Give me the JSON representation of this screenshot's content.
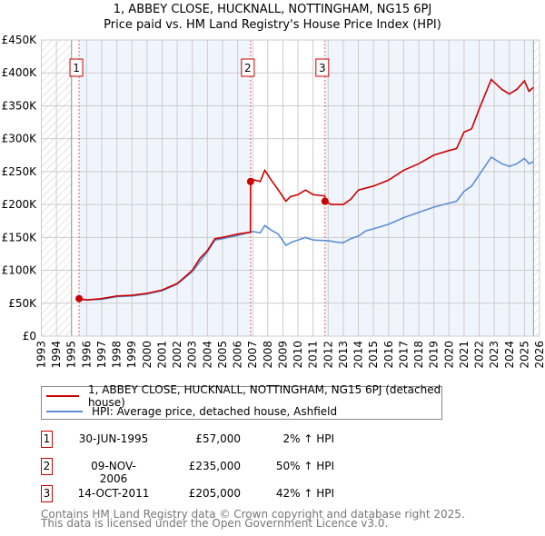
{
  "title_line1": "1, ABBEY CLOSE, HUCKNALL, NOTTINGHAM, NG15 6PJ",
  "title_line2": "Price paid vs. HM Land Registry's House Price Index (HPI)",
  "colors": {
    "property": "#cc0000",
    "hpi": "#5b8fd4",
    "shade": "#f0f4fc",
    "grid": "#cccccc"
  },
  "chart_data": {
    "type": "line",
    "title": "1, ABBEY CLOSE, HUCKNALL, NOTTINGHAM, NG15 6PJ - Price paid vs. HM Land Registry's House Price Index (HPI)",
    "xlim": [
      1993,
      2026
    ],
    "ylim": [
      0,
      450000
    ],
    "grid": true,
    "x_ticks": [
      "1993",
      "1994",
      "1995",
      "1996",
      "1997",
      "1998",
      "1999",
      "2000",
      "2001",
      "2002",
      "2003",
      "2004",
      "2005",
      "2006",
      "2007",
      "2008",
      "2009",
      "2010",
      "2011",
      "2012",
      "2013",
      "2014",
      "2015",
      "2016",
      "2017",
      "2018",
      "2019",
      "2020",
      "2021",
      "2022",
      "2023",
      "2024",
      "2025",
      "2026"
    ],
    "y_ticks": [
      {
        "v": 0,
        "label": "£0"
      },
      {
        "v": 50000,
        "label": "£50K"
      },
      {
        "v": 100000,
        "label": "£100K"
      },
      {
        "v": 150000,
        "label": "£150K"
      },
      {
        "v": 200000,
        "label": "£200K"
      },
      {
        "v": 250000,
        "label": "£250K"
      },
      {
        "v": 300000,
        "label": "£300K"
      },
      {
        "v": 350000,
        "label": "£350K"
      },
      {
        "v": 400000,
        "label": "£400K"
      },
      {
        "v": 450000,
        "label": "£450K"
      }
    ],
    "hatched_before": 1995,
    "hatched_after": 2025.6,
    "series": [
      {
        "name": "1, ABBEY CLOSE, HUCKNALL, NOTTINGHAM, NG15 6PJ (detached house)",
        "color": "#cc0000",
        "x": [
          1995.5,
          1996,
          1997,
          1998,
          1999,
          2000,
          2001,
          2002,
          2003,
          2003.5,
          2004,
          2004.5,
          2005,
          2006,
          2006.85,
          2006.86,
          2007,
          2007.5,
          2007.8,
          2008.2,
          2008.7,
          2009.2,
          2009.5,
          2010,
          2010.5,
          2011,
          2011.78,
          2011.79,
          2012.2,
          2013,
          2013.5,
          2014,
          2015,
          2016,
          2017,
          2018,
          2019,
          2020,
          2020.5,
          2021,
          2021.5,
          2022,
          2022.8,
          2023.5,
          2024,
          2024.5,
          2025,
          2025.3,
          2025.6
        ],
        "y": [
          57000,
          55000,
          57000,
          61000,
          62000,
          65000,
          70000,
          80000,
          100000,
          118000,
          130000,
          148000,
          150000,
          155000,
          158000,
          235000,
          238000,
          235000,
          252000,
          238000,
          222000,
          205000,
          212000,
          215000,
          222000,
          215000,
          213000,
          205000,
          200000,
          200000,
          208000,
          222000,
          228000,
          237000,
          252000,
          262000,
          275000,
          282000,
          285000,
          310000,
          315000,
          345000,
          390000,
          375000,
          368000,
          375000,
          388000,
          372000,
          378000
        ]
      },
      {
        "name": "HPI: Average price, detached house, Ashfield",
        "color": "#5b8fd4",
        "x": [
          1995.5,
          1996,
          1997,
          1998,
          1999,
          2000,
          2001,
          2002,
          2003,
          2004,
          2004.5,
          2005,
          2006,
          2007,
          2007.5,
          2007.8,
          2008.3,
          2008.7,
          2009.2,
          2009.6,
          2010,
          2010.5,
          2011,
          2012,
          2012.5,
          2013,
          2013.5,
          2014,
          2014.5,
          2015,
          2016,
          2017,
          2018,
          2019,
          2020,
          2020.5,
          2021,
          2021.5,
          2022,
          2022.8,
          2023.5,
          2024,
          2024.5,
          2025,
          2025.3,
          2025.6
        ],
        "y": [
          56000,
          55000,
          56000,
          60000,
          61000,
          64000,
          69000,
          79000,
          98000,
          128000,
          146000,
          148000,
          153000,
          159000,
          157000,
          168000,
          160000,
          155000,
          138000,
          143000,
          146000,
          150000,
          146000,
          145000,
          143000,
          142000,
          148000,
          152000,
          160000,
          163000,
          170000,
          180000,
          188000,
          196000,
          202000,
          205000,
          220000,
          228000,
          245000,
          272000,
          262000,
          258000,
          262000,
          270000,
          262000,
          265000
        ]
      }
    ],
    "sales": [
      {
        "id": "1",
        "x": 1995.5,
        "y": 57000
      },
      {
        "id": "2",
        "x": 2006.86,
        "y": 235000
      },
      {
        "id": "3",
        "x": 2011.79,
        "y": 205000
      }
    ]
  },
  "legend": {
    "property": "1, ABBEY CLOSE, HUCKNALL, NOTTINGHAM, NG15 6PJ (detached house)",
    "hpi": "HPI: Average price, detached house, Ashfield"
  },
  "transactions": [
    {
      "id": "1",
      "date": "30-JUN-1995",
      "price": "£57,000",
      "hpi": "2% ↑ HPI"
    },
    {
      "id": "2",
      "date": "09-NOV-2006",
      "price": "£235,000",
      "hpi": "50% ↑ HPI"
    },
    {
      "id": "3",
      "date": "14-OCT-2011",
      "price": "£205,000",
      "hpi": "42% ↑ HPI"
    }
  ],
  "footer": {
    "line1": "Contains HM Land Registry data © Crown copyright and database right 2025.",
    "line2": "This data is licensed under the Open Government Licence v3.0."
  }
}
